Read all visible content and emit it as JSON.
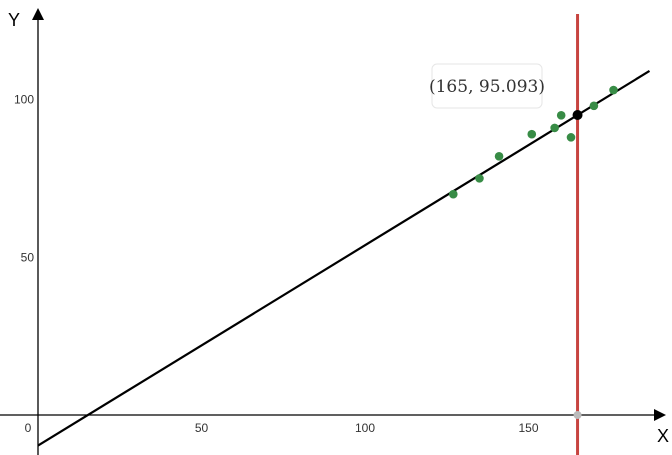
{
  "chart_data": {
    "type": "scatter",
    "xlabel": "X",
    "ylabel": "Y",
    "xlim": [
      -10,
      187
    ],
    "ylim": [
      -12,
      130
    ],
    "grid": false,
    "x_ticks": [
      0,
      50,
      100,
      150
    ],
    "y_ticks": [
      50,
      100
    ],
    "x_tick_labels": [
      "0",
      "50",
      "100",
      "150"
    ],
    "y_tick_labels": [
      "50",
      "100"
    ],
    "points": {
      "color": "#388c46",
      "x": [
        127,
        135,
        141,
        151,
        158,
        160,
        163,
        170,
        176
      ],
      "y": [
        70,
        75,
        82,
        89,
        91,
        95,
        88,
        98,
        103
      ]
    },
    "regression_line": {
      "color": "#000000",
      "slope": 0.635,
      "intercept": -9.7
    },
    "vertical_line": {
      "color": "#c74440",
      "x": 165
    },
    "highlight_point": {
      "x": 165,
      "y": 95.093,
      "label": "(165, 95.093)"
    }
  }
}
